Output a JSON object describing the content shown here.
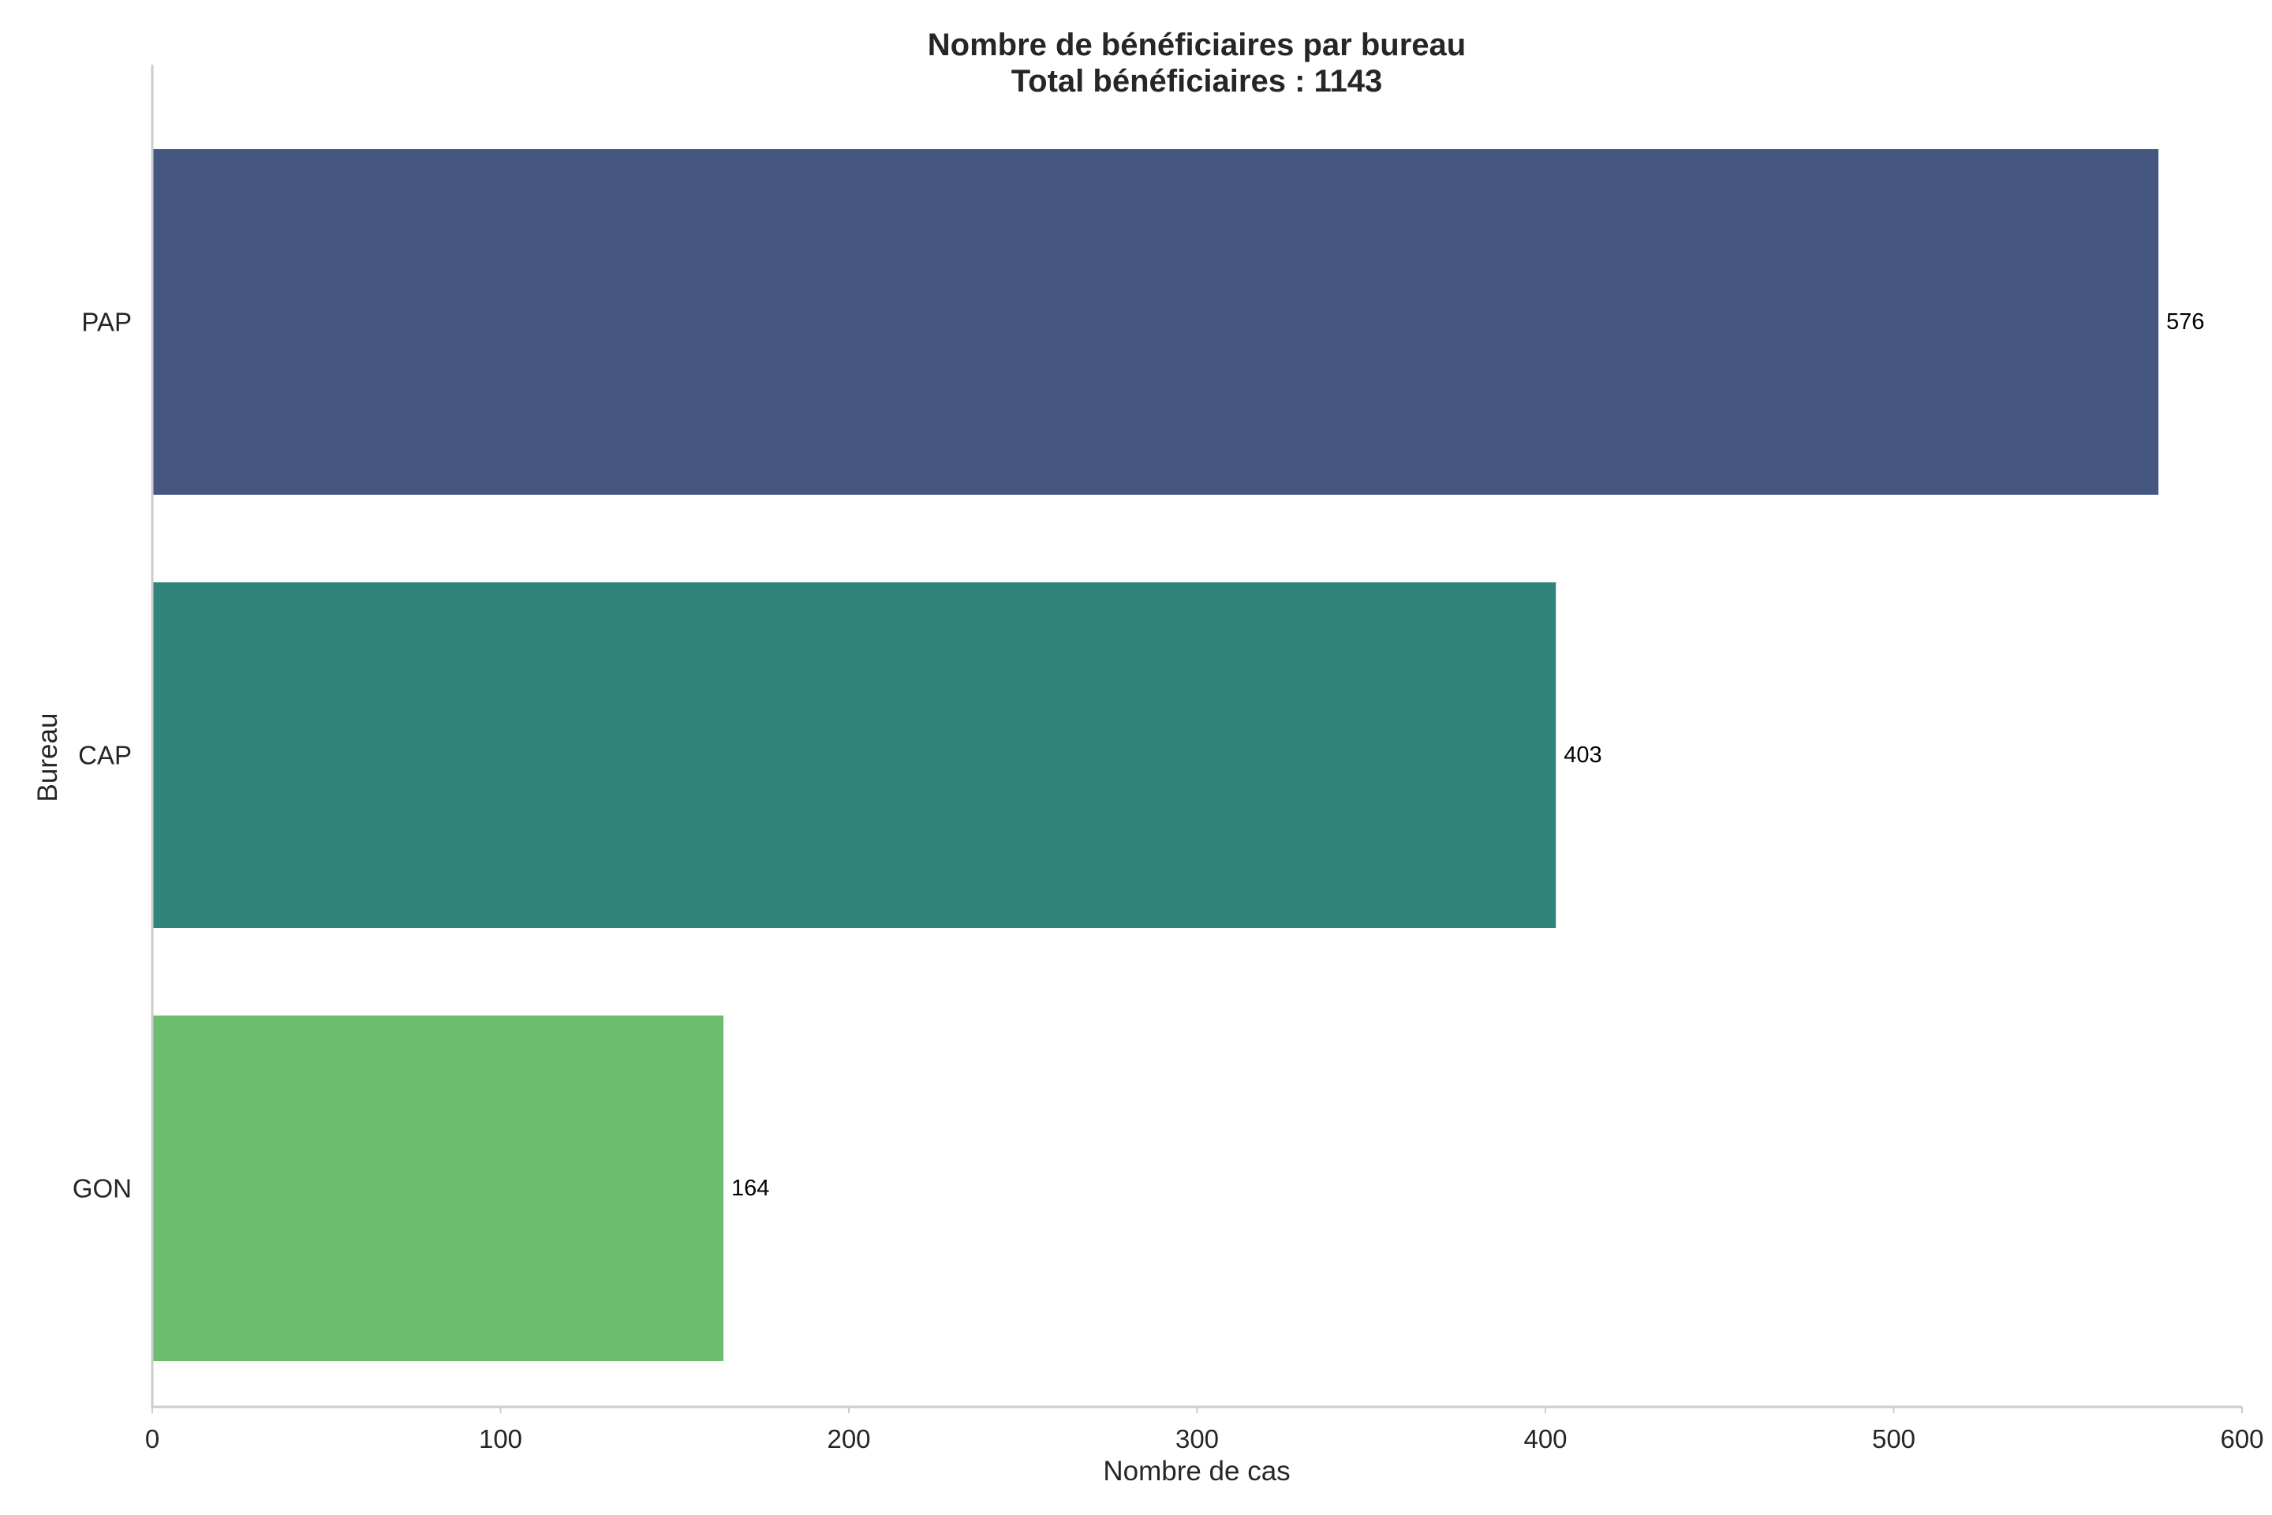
{
  "chart_data": {
    "type": "bar",
    "orientation": "horizontal",
    "title": "Nombre de bénéficiaires par bureau",
    "subtitle": "Total bénéficiaires : 1143",
    "xlabel": "Nombre de cas",
    "ylabel": "Bureau",
    "categories": [
      "PAP",
      "CAP",
      "GON"
    ],
    "values": [
      576,
      403,
      164
    ],
    "data_labels": [
      "576",
      "403",
      "164"
    ],
    "colors": [
      "#455780",
      "#2f847c",
      "#6dbd6e"
    ],
    "xlim": [
      0,
      600
    ],
    "xticks": [
      0,
      100,
      200,
      300,
      400,
      500,
      600
    ],
    "xtick_labels": [
      "0",
      "100",
      "200",
      "300",
      "400",
      "500",
      "600"
    ],
    "grid": false,
    "legend": "none"
  }
}
